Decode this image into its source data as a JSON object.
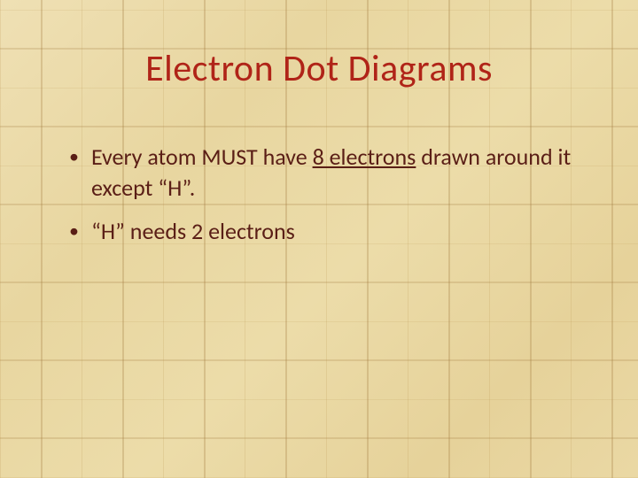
{
  "slide": {
    "title": "Electron Dot Diagrams",
    "title_color": "#b02418",
    "body_color": "#5a1e16",
    "title_fontsize": 42,
    "body_fontsize": 26,
    "background_base": "#ecdca9",
    "bullets": [
      {
        "pre": "Every atom MUST have ",
        "underlined": "8 electrons",
        "post": " drawn around it except “H”."
      },
      {
        "pre": "“H” needs 2 electrons",
        "underlined": "",
        "post": ""
      }
    ]
  }
}
